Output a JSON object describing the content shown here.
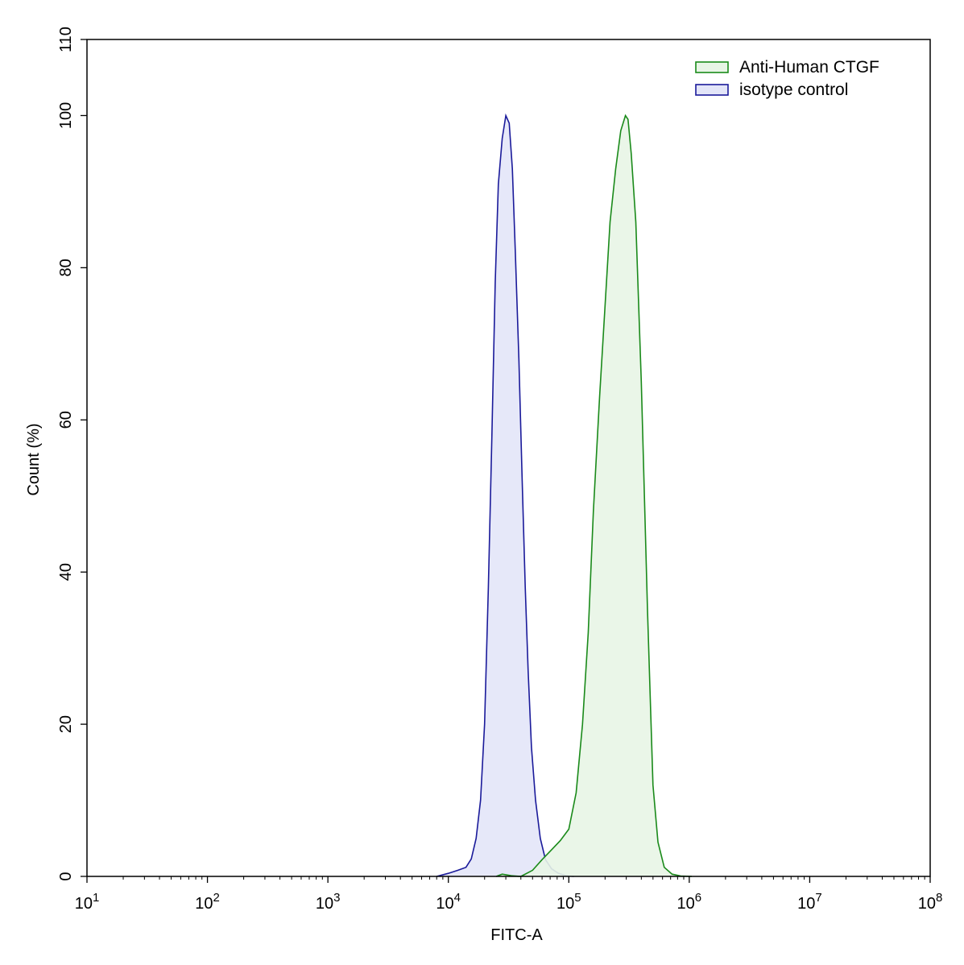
{
  "chart_data": {
    "type": "area",
    "title": "",
    "xlabel": "FITC-A",
    "ylabel": "Count  (%)",
    "x_scale": "log10",
    "xlim": [
      10,
      100000000
    ],
    "ylim": [
      0,
      110
    ],
    "x_tick_labels": [
      {
        "base": "10",
        "exp": "1"
      },
      {
        "base": "10",
        "exp": "2"
      },
      {
        "base": "10",
        "exp": "3"
      },
      {
        "base": "10",
        "exp": "4"
      },
      {
        "base": "10",
        "exp": "5"
      },
      {
        "base": "10",
        "exp": "6"
      },
      {
        "base": "10",
        "exp": "7"
      },
      {
        "base": "10",
        "exp": "8"
      }
    ],
    "x_tick_values": [
      10,
      100,
      1000,
      10000,
      100000,
      1000000,
      10000000,
      100000000
    ],
    "y_tick_labels": [
      "0",
      "20",
      "40",
      "60",
      "80",
      "100",
      "110"
    ],
    "y_tick_values": [
      0,
      20,
      40,
      60,
      80,
      100,
      110
    ],
    "grid": false,
    "legend_position": "top-right",
    "series": [
      {
        "name": "Anti-Human CTGF",
        "stroke": "#1a8a1a",
        "fill": "#e8f5e6",
        "points": [
          [
            25000,
            0
          ],
          [
            28000,
            0.3
          ],
          [
            33000,
            0.1
          ],
          [
            40000,
            0
          ],
          [
            50000,
            0.8
          ],
          [
            60000,
            2.2
          ],
          [
            72000,
            3.5
          ],
          [
            85000,
            4.7
          ],
          [
            100000,
            6.2
          ],
          [
            115000,
            11
          ],
          [
            130000,
            20
          ],
          [
            145000,
            32
          ],
          [
            160000,
            48
          ],
          [
            180000,
            63
          ],
          [
            200000,
            75
          ],
          [
            220000,
            86
          ],
          [
            245000,
            93
          ],
          [
            270000,
            98
          ],
          [
            295000,
            100
          ],
          [
            310000,
            99.5
          ],
          [
            330000,
            95
          ],
          [
            360000,
            86
          ],
          [
            400000,
            65
          ],
          [
            450000,
            35
          ],
          [
            500000,
            12
          ],
          [
            550000,
            4.5
          ],
          [
            620000,
            1.2
          ],
          [
            720000,
            0.3
          ],
          [
            850000,
            0.05
          ],
          [
            1050000,
            0
          ]
        ]
      },
      {
        "name": "isotype control",
        "stroke": "#1a1a9a",
        "fill": "#e3e5f8",
        "points": [
          [
            8000,
            0
          ],
          [
            10000,
            0.4
          ],
          [
            12000,
            0.8
          ],
          [
            14000,
            1.2
          ],
          [
            15500,
            2.3
          ],
          [
            17000,
            5
          ],
          [
            18500,
            10
          ],
          [
            20000,
            20
          ],
          [
            21500,
            38
          ],
          [
            23000,
            58
          ],
          [
            24500,
            78
          ],
          [
            26000,
            91
          ],
          [
            28000,
            97
          ],
          [
            30000,
            100
          ],
          [
            32000,
            99
          ],
          [
            34000,
            93
          ],
          [
            36000,
            82
          ],
          [
            38500,
            68
          ],
          [
            41000,
            52
          ],
          [
            43500,
            38
          ],
          [
            46000,
            27
          ],
          [
            49000,
            17
          ],
          [
            53000,
            10
          ],
          [
            58000,
            5
          ],
          [
            64000,
            2.2
          ],
          [
            72000,
            1
          ],
          [
            82000,
            0.4
          ],
          [
            95000,
            0.1
          ],
          [
            110000,
            0
          ]
        ]
      }
    ]
  }
}
